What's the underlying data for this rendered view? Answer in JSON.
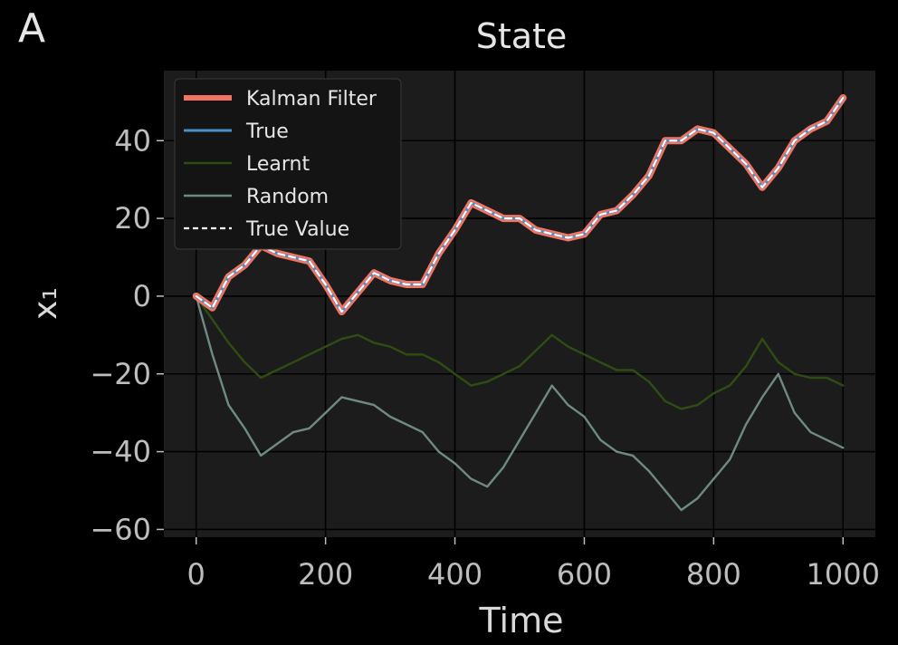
{
  "panel_label": "A",
  "colors": {
    "background": "#000000",
    "plot_background": "#1c1c1c",
    "grid": "#000000",
    "text": "#d9d9d9",
    "tick_text": "#bdbdbd",
    "kalman": "#f27362",
    "true": "#4c8fc4",
    "learnt": "#2f4d12",
    "random": "#6f8a84",
    "true_value": "#ffffff"
  },
  "chart_data": {
    "type": "line",
    "title": "State",
    "xlabel": "Time",
    "ylabel": "x₁",
    "xlim": [
      -50,
      1050
    ],
    "ylim": [
      -62,
      58
    ],
    "xticks": [
      0,
      200,
      400,
      600,
      800,
      1000
    ],
    "yticks": [
      40,
      20,
      0,
      -20,
      -40,
      -60
    ],
    "xtick_labels": [
      "0",
      "200",
      "400",
      "600",
      "800",
      "1000"
    ],
    "ytick_labels": [
      "40",
      "20",
      "0",
      "−20",
      "−40",
      "−60"
    ],
    "grid": true,
    "legend_position": "top-left",
    "x": [
      0,
      25,
      50,
      75,
      100,
      125,
      150,
      175,
      200,
      225,
      250,
      275,
      300,
      325,
      350,
      375,
      400,
      425,
      450,
      475,
      500,
      525,
      550,
      575,
      600,
      625,
      650,
      675,
      700,
      725,
      750,
      775,
      800,
      825,
      850,
      875,
      900,
      925,
      950,
      975,
      1000
    ],
    "series": [
      {
        "name": "Kalman Filter",
        "role": "kalman",
        "values": [
          0,
          -3,
          5,
          8,
          13,
          11,
          10,
          9,
          3,
          -4,
          1,
          6,
          4,
          3,
          3,
          11,
          17,
          24,
          22,
          20,
          20,
          17,
          16,
          15,
          16,
          21,
          22,
          26,
          31,
          40,
          40,
          43,
          42,
          38,
          34,
          28,
          33,
          40,
          43,
          45,
          51
        ]
      },
      {
        "name": "True",
        "role": "true",
        "values": [
          0,
          -3,
          5,
          8,
          13,
          11,
          10,
          9,
          3,
          -4,
          1,
          6,
          4,
          3,
          3,
          11,
          17,
          24,
          22,
          20,
          20,
          17,
          16,
          15,
          16,
          21,
          22,
          26,
          31,
          40,
          40,
          43,
          42,
          38,
          34,
          28,
          33,
          40,
          43,
          45,
          51
        ]
      },
      {
        "name": "Learnt",
        "values": [
          0,
          -6,
          -12,
          -17,
          -21,
          -19,
          -17,
          -15,
          -13,
          -11,
          -10,
          -12,
          -13,
          -15,
          -15,
          -17,
          -20,
          -23,
          -22,
          -20,
          -18,
          -14,
          -10,
          -13,
          -15,
          -17,
          -19,
          -19,
          -22,
          -27,
          -29,
          -28,
          -25,
          -23,
          -18,
          -11,
          -17,
          -20,
          -21,
          -21,
          -23
        ]
      },
      {
        "name": "Random",
        "values": [
          0,
          -15,
          -28,
          -34,
          -41,
          -38,
          -35,
          -34,
          -30,
          -26,
          -27,
          -28,
          -31,
          -33,
          -35,
          -40,
          -43,
          -47,
          -49,
          -44,
          -37,
          -30,
          -23,
          -28,
          -31,
          -37,
          -40,
          -41,
          -45,
          -50,
          -55,
          -52,
          -47,
          -42,
          -33,
          -26,
          -20,
          -30,
          -35,
          -37,
          -39
        ]
      },
      {
        "name": "True Value",
        "role": "true_value",
        "dashed": true,
        "values": [
          0,
          -3,
          5,
          8,
          13,
          11,
          10,
          9,
          3,
          -4,
          1,
          6,
          4,
          3,
          3,
          11,
          17,
          24,
          22,
          20,
          20,
          17,
          16,
          15,
          16,
          21,
          22,
          26,
          31,
          40,
          40,
          43,
          42,
          38,
          34,
          28,
          33,
          40,
          43,
          45,
          51
        ]
      }
    ]
  }
}
